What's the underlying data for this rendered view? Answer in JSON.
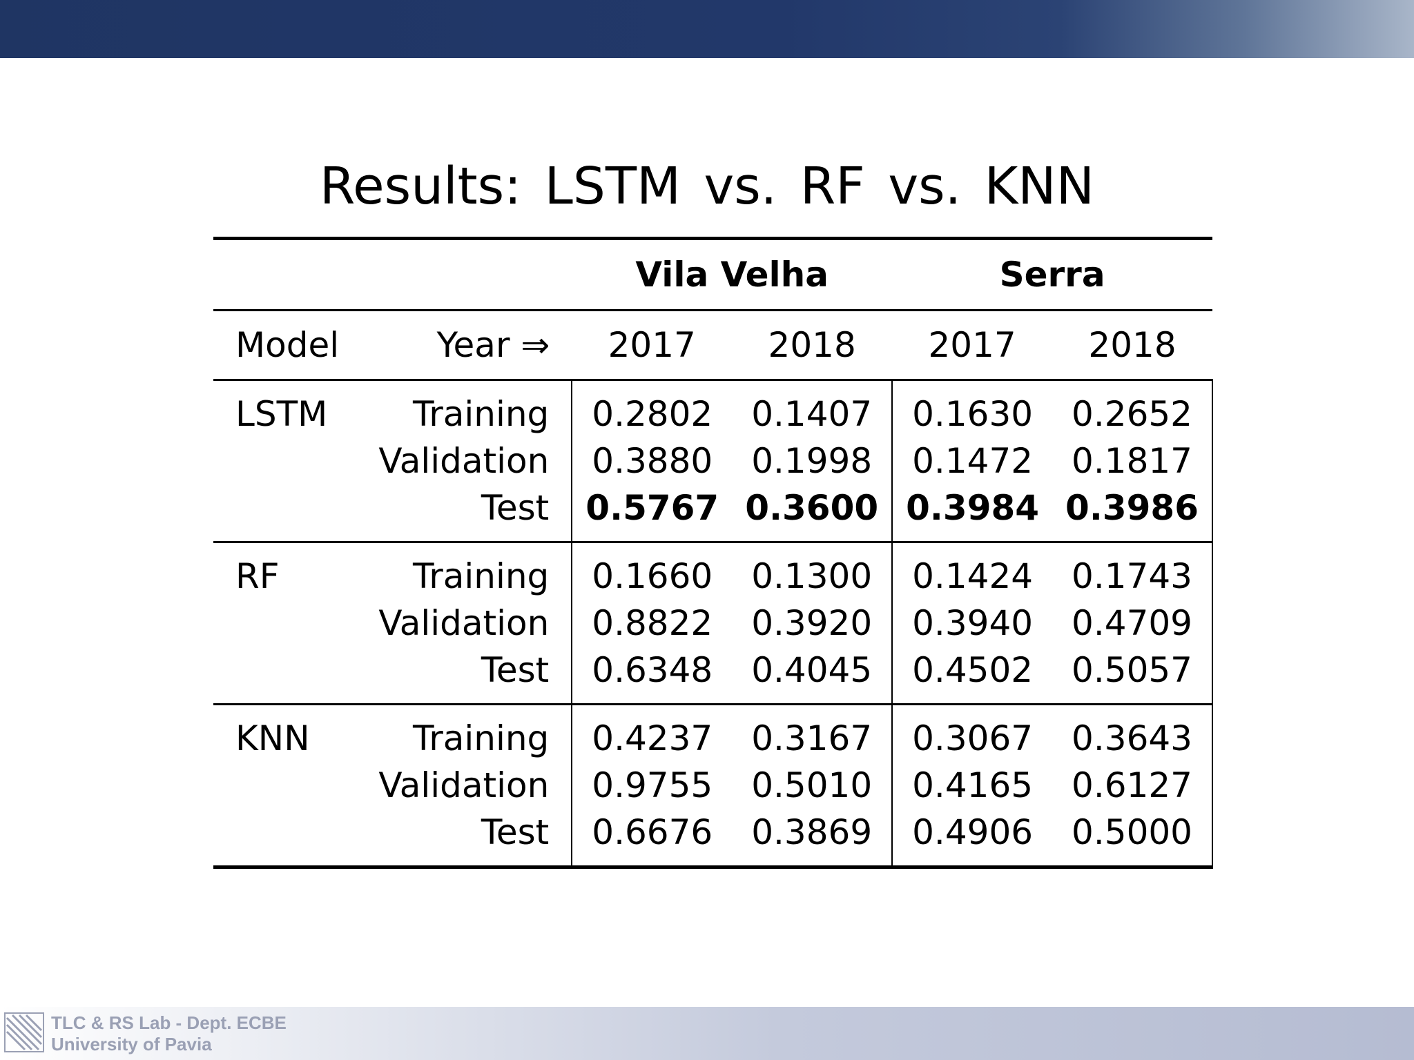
{
  "title": "Results: LSTM vs. RF vs. KNN",
  "table": {
    "cities": [
      "Vila Velha",
      "Serra"
    ],
    "header": {
      "model_label": "Model",
      "year_label": "Year ⇒",
      "years": [
        "2017",
        "2018",
        "2017",
        "2018"
      ]
    },
    "models": [
      {
        "name": "LSTM",
        "rows": [
          {
            "set": "Training",
            "values": [
              "0.2802",
              "0.1407",
              "0.1630",
              "0.2652"
            ]
          },
          {
            "set": "Validation",
            "values": [
              "0.3880",
              "0.1998",
              "0.1472",
              "0.1817"
            ]
          },
          {
            "set": "Test",
            "values": [
              "0.5767",
              "0.3600",
              "0.3984",
              "0.3986"
            ]
          }
        ]
      },
      {
        "name": "RF",
        "rows": [
          {
            "set": "Training",
            "values": [
              "0.1660",
              "0.1300",
              "0.1424",
              "0.1743"
            ]
          },
          {
            "set": "Validation",
            "values": [
              "0.8822",
              "0.3920",
              "0.3940",
              "0.4709"
            ]
          },
          {
            "set": "Test",
            "values": [
              "0.6348",
              "0.4045",
              "0.4502",
              "0.5057"
            ]
          }
        ]
      },
      {
        "name": "KNN",
        "rows": [
          {
            "set": "Training",
            "values": [
              "0.4237",
              "0.3167",
              "0.3067",
              "0.3643"
            ]
          },
          {
            "set": "Validation",
            "values": [
              "0.9755",
              "0.5010",
              "0.4165",
              "0.6127"
            ]
          },
          {
            "set": "Test",
            "values": [
              "0.6676",
              "0.3869",
              "0.4906",
              "0.5000"
            ]
          }
        ]
      }
    ]
  },
  "footer": {
    "line1": "TLC & RS Lab - Dept. ECBE",
    "line2": "University of Pavia"
  },
  "colors": {
    "header_bar": "#22386a",
    "footer_text": "#9aa0b4"
  }
}
